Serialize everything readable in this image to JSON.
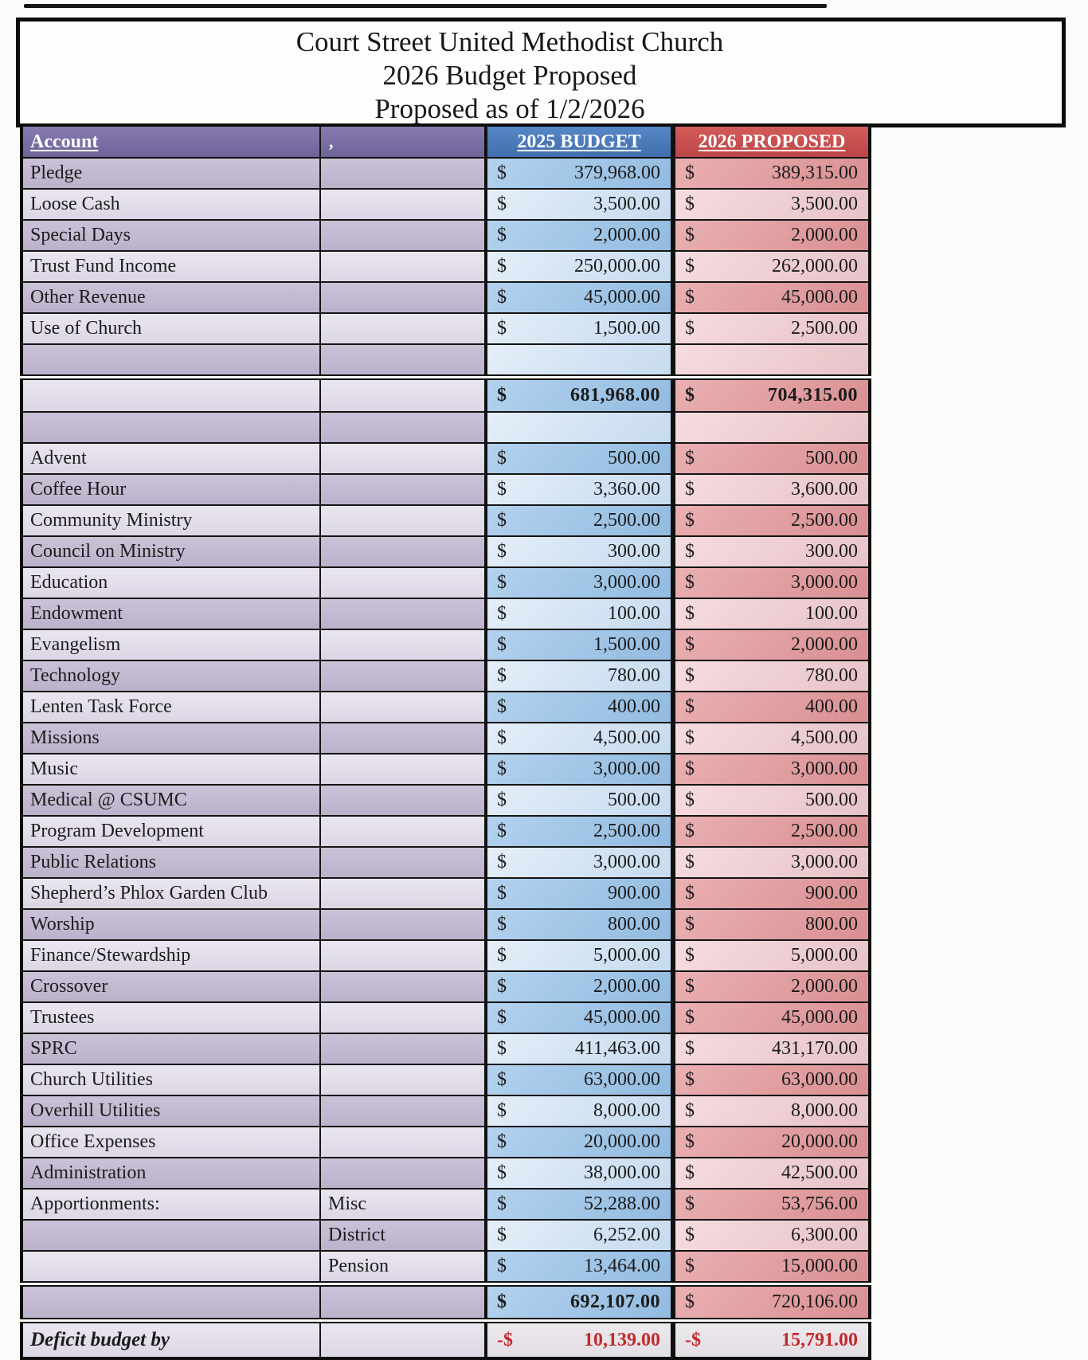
{
  "title": {
    "line1": "Court Street United Methodist Church",
    "line2": "2026 Budget Proposed",
    "line3": "Proposed as of  1/2/2026"
  },
  "table": {
    "headers": {
      "account": "Account",
      "col_b_mark": ",",
      "budget2025": "2025 BUDGET",
      "proposed2026": "2026 PROPOSED"
    },
    "currency_symbol": "$",
    "negative_currency_symbol": "-$",
    "rows": [
      {
        "type": "data",
        "label": "Pledge",
        "desc": "",
        "v2025": "379,968.00",
        "v2026": "389,315.00",
        "left": "d",
        "money": "d"
      },
      {
        "type": "data",
        "label": "Loose Cash",
        "desc": "",
        "v2025": "3,500.00",
        "v2026": "3,500.00",
        "left": "l",
        "money": "l"
      },
      {
        "type": "data",
        "label": "Special Days",
        "desc": "",
        "v2025": "2,000.00",
        "v2026": "2,000.00",
        "left": "d",
        "money": "d"
      },
      {
        "type": "data",
        "label": "Trust Fund Income",
        "desc": "",
        "v2025": "250,000.00",
        "v2026": "262,000.00",
        "left": "l",
        "money": "l"
      },
      {
        "type": "data",
        "label": "Other Revenue",
        "desc": "",
        "v2025": "45,000.00",
        "v2026": "45,000.00",
        "left": "d",
        "money": "d"
      },
      {
        "type": "data",
        "label": "Use of Church",
        "desc": "",
        "v2025": "1,500.00",
        "v2026": "2,500.00",
        "left": "l",
        "money": "l"
      },
      {
        "type": "blank",
        "left": "d",
        "money": "l"
      },
      {
        "type": "total",
        "label": "",
        "desc": "",
        "v2025": "681,968.00",
        "v2026": "704,315.00",
        "left": "l",
        "money": "d",
        "bold2025": true,
        "bold2026": true,
        "double_top": true
      },
      {
        "type": "blank",
        "left": "d",
        "money": "l"
      },
      {
        "type": "data",
        "label": "Advent",
        "desc": "",
        "v2025": "500.00",
        "v2026": "500.00",
        "left": "l",
        "money": "d"
      },
      {
        "type": "data",
        "label": "Coffee Hour",
        "desc": "",
        "v2025": "3,360.00",
        "v2026": "3,600.00",
        "left": "d",
        "money": "l"
      },
      {
        "type": "data",
        "label": "Community Ministry",
        "desc": "",
        "v2025": "2,500.00",
        "v2026": "2,500.00",
        "left": "l",
        "money": "d"
      },
      {
        "type": "data",
        "label": "Council on Ministry",
        "desc": "",
        "v2025": "300.00",
        "v2026": "300.00",
        "left": "d",
        "money": "l"
      },
      {
        "type": "data",
        "label": "Education",
        "desc": "",
        "v2025": "3,000.00",
        "v2026": "3,000.00",
        "left": "l",
        "money": "d"
      },
      {
        "type": "data",
        "label": "Endowment",
        "desc": "",
        "v2025": "100.00",
        "v2026": "100.00",
        "left": "d",
        "money": "l"
      },
      {
        "type": "data",
        "label": "Evangelism",
        "desc": "",
        "v2025": "1,500.00",
        "v2026": "2,000.00",
        "left": "l",
        "money": "d"
      },
      {
        "type": "data",
        "label": "Technology",
        "desc": "",
        "v2025": "780.00",
        "v2026": "780.00",
        "left": "d",
        "money": "l"
      },
      {
        "type": "data",
        "label": "Lenten Task Force",
        "desc": "",
        "v2025": "400.00",
        "v2026": "400.00",
        "left": "l",
        "money": "d"
      },
      {
        "type": "data",
        "label": "Missions",
        "desc": "",
        "v2025": "4,500.00",
        "v2026": "4,500.00",
        "left": "d",
        "money": "l"
      },
      {
        "type": "data",
        "label": "Music",
        "desc": "",
        "v2025": "3,000.00",
        "v2026": "3,000.00",
        "left": "l",
        "money": "d"
      },
      {
        "type": "data",
        "label": "Medical @ CSUMC",
        "desc": "",
        "v2025": "500.00",
        "v2026": "500.00",
        "left": "d",
        "money": "l"
      },
      {
        "type": "data",
        "label": "Program Development",
        "desc": "",
        "v2025": "2,500.00",
        "v2026": "2,500.00",
        "left": "l",
        "money": "d"
      },
      {
        "type": "data",
        "label": "Public Relations",
        "desc": "",
        "v2025": "3,000.00",
        "v2026": "3,000.00",
        "left": "d",
        "money": "l"
      },
      {
        "type": "data",
        "label": "Shepherd’s Phlox Garden Club",
        "desc": "",
        "v2025": "900.00",
        "v2026": "900.00",
        "left": "l",
        "money": "d"
      },
      {
        "type": "data",
        "label": "Worship",
        "desc": "",
        "v2025": "800.00",
        "v2026": "800.00",
        "left": "d",
        "money": "d"
      },
      {
        "type": "data",
        "label": "Finance/Stewardship",
        "desc": "",
        "v2025": "5,000.00",
        "v2026": "5,000.00",
        "left": "l",
        "money": "l"
      },
      {
        "type": "data",
        "label": "Crossover",
        "desc": "",
        "v2025": "2,000.00",
        "v2026": "2,000.00",
        "left": "d",
        "money": "d"
      },
      {
        "type": "data",
        "label": "Trustees",
        "desc": "",
        "v2025": "45,000.00",
        "v2026": "45,000.00",
        "left": "l",
        "money": "d"
      },
      {
        "type": "data",
        "label": "SPRC",
        "desc": "",
        "v2025": "411,463.00",
        "v2026": "431,170.00",
        "left": "d",
        "money": "l"
      },
      {
        "type": "data",
        "label": "Church Utilities",
        "desc": "",
        "v2025": "63,000.00",
        "v2026": "63,000.00",
        "left": "l",
        "money": "d"
      },
      {
        "type": "data",
        "label": "Overhill Utilities",
        "desc": "",
        "v2025": "8,000.00",
        "v2026": "8,000.00",
        "left": "d",
        "money": "l"
      },
      {
        "type": "data",
        "label": "Office Expenses",
        "desc": "",
        "v2025": "20,000.00",
        "v2026": "20,000.00",
        "left": "l",
        "money": "d"
      },
      {
        "type": "data",
        "label": "Administration",
        "desc": "",
        "v2025": "38,000.00",
        "v2026": "42,500.00",
        "left": "d",
        "money": "l"
      },
      {
        "type": "data",
        "label": "Apportionments:",
        "desc": "Misc",
        "v2025": "52,288.00",
        "v2026": "53,756.00",
        "left": "l",
        "money": "d"
      },
      {
        "type": "data",
        "label": "",
        "desc": "District",
        "v2025": "6,252.00",
        "v2026": "6,300.00",
        "left": "d",
        "money": "l"
      },
      {
        "type": "data",
        "label": "",
        "desc": "Pension",
        "v2025": "13,464.00",
        "v2026": "15,000.00",
        "left": "l",
        "money": "d"
      },
      {
        "type": "total",
        "label": "",
        "desc": "",
        "v2025": "692,107.00",
        "v2026": "720,106.00",
        "left": "d",
        "money": "d",
        "bold2025": true,
        "bold2026": false,
        "double_top": true
      },
      {
        "type": "deficit",
        "label": "Deficit budget by",
        "desc": "",
        "v2025": "10,139.00",
        "v2026": "15,791.00",
        "left": "l",
        "double_top": true
      }
    ]
  },
  "colors": {
    "header_purple": "#7a6ea4",
    "header_blue": "#4c7bba",
    "header_red": "#c65250",
    "deficit_text_red": "#c3292c"
  }
}
